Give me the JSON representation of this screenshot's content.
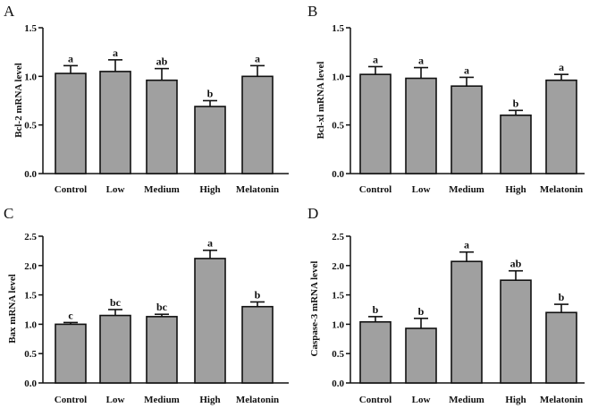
{
  "chart_data": [
    {
      "panel": "A",
      "type": "bar",
      "categories": [
        "Control",
        "Low",
        "Medium",
        "High",
        "Melatonin"
      ],
      "values": [
        1.03,
        1.05,
        0.96,
        0.69,
        1.0
      ],
      "errors": [
        0.08,
        0.12,
        0.12,
        0.06,
        0.11
      ],
      "labels": [
        "a",
        "a",
        "ab",
        "b",
        "a"
      ],
      "ylabel": "Bcl-2 mRNA level",
      "ylim": [
        0,
        1.5
      ],
      "yticks": [
        "0.0",
        "0.5",
        "1.0",
        "1.5"
      ],
      "bar_color": "#a0a0a0"
    },
    {
      "panel": "B",
      "type": "bar",
      "categories": [
        "Control",
        "Low",
        "Medium",
        "High",
        "Melatonin"
      ],
      "values": [
        1.02,
        0.98,
        0.9,
        0.6,
        0.96
      ],
      "errors": [
        0.08,
        0.11,
        0.09,
        0.05,
        0.06
      ],
      "labels": [
        "a",
        "a",
        "a",
        "b",
        "a"
      ],
      "ylabel": "Bcl-xl mRNA level",
      "ylim": [
        0,
        1.5
      ],
      "yticks": [
        "0.0",
        "0.5",
        "1.0",
        "1.5"
      ],
      "bar_color": "#a0a0a0"
    },
    {
      "panel": "C",
      "type": "bar",
      "categories": [
        "Control",
        "Low",
        "Medium",
        "High",
        "Melatonin"
      ],
      "values": [
        1.0,
        1.15,
        1.13,
        2.12,
        1.3
      ],
      "errors": [
        0.03,
        0.1,
        0.04,
        0.14,
        0.08
      ],
      "labels": [
        "c",
        "bc",
        "bc",
        "a",
        "b"
      ],
      "ylabel": "Bax mRNA level",
      "ylim": [
        0,
        2.5
      ],
      "yticks": [
        "0.0",
        "0.5",
        "1.0",
        "1.5",
        "2.0",
        "2.5"
      ],
      "bar_color": "#a0a0a0"
    },
    {
      "panel": "D",
      "type": "bar",
      "categories": [
        "Control",
        "Low",
        "Medium",
        "High",
        "Melatonin"
      ],
      "values": [
        1.04,
        0.93,
        2.07,
        1.75,
        1.2
      ],
      "errors": [
        0.09,
        0.17,
        0.16,
        0.16,
        0.14
      ],
      "labels": [
        "b",
        "b",
        "a",
        "ab",
        "b"
      ],
      "ylabel": "Caspase-3 mRNA level",
      "ylim": [
        0,
        2.5
      ],
      "yticks": [
        "0.0",
        "0.5",
        "1.0",
        "1.5",
        "2.0",
        "2.5"
      ],
      "bar_color": "#a0a0a0"
    }
  ]
}
